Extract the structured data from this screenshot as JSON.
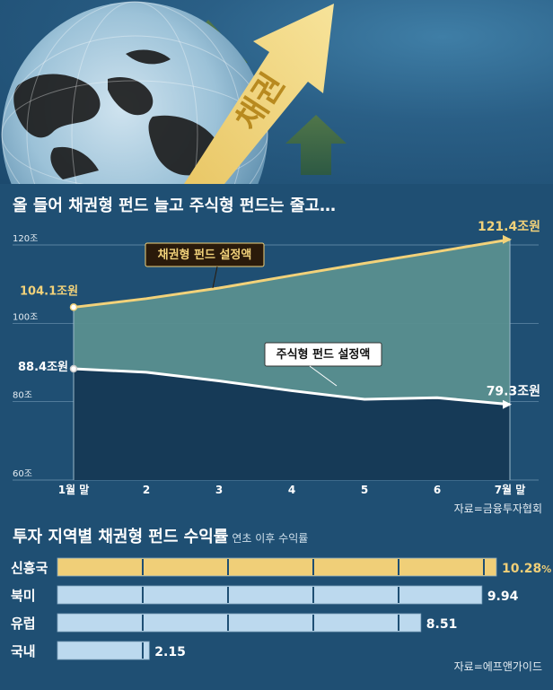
{
  "hero": {
    "arrow_label": "채권"
  },
  "chart1": {
    "title": "올 들어 채권형 펀드 늘고 주식형 펀드는 줄고…",
    "source": "자료=금융투자협회"
  },
  "chart2": {
    "title": "투자 지역별 채권형 펀드 수익률",
    "subtitle": "연초 이후 수익률",
    "source": "자료=에프앤가이드"
  },
  "colors": {
    "bond": "#f2d27a",
    "stock": "#ffffff",
    "bond_area": "#5a8f8f",
    "stock_area": "#163a57",
    "bar_highlight": "#f0cf78",
    "bar_normal": "#bcd9ee"
  },
  "chart_data": [
    {
      "type": "area",
      "categories": [
        "1월 말",
        "2",
        "3",
        "4",
        "5",
        "6",
        "7월 말"
      ],
      "series": [
        {
          "name": "채권형 펀드 설정액",
          "values": [
            104.1,
            106.3,
            109.0,
            112.2,
            115.3,
            118.3,
            121.4
          ]
        },
        {
          "name": "주식형 펀드 설정액",
          "values": [
            88.4,
            87.5,
            85.3,
            82.8,
            80.6,
            81.0,
            79.3
          ]
        }
      ],
      "ytick_labels": [
        "60조",
        "80조",
        "100조",
        "120조"
      ],
      "ylim": [
        60,
        120
      ],
      "data_labels": {
        "bond_start": "104.1조원",
        "bond_end": "121.4조원",
        "stock_start": "88.4조원",
        "stock_end": "79.3조원"
      },
      "grid": true
    },
    {
      "type": "bar",
      "categories": [
        "신흥국",
        "북미",
        "유럽",
        "국내"
      ],
      "values": [
        10.28,
        9.94,
        8.51,
        2.15
      ],
      "value_labels": [
        "10.28",
        "9.94",
        "8.51",
        "2.15"
      ],
      "unit": "%",
      "max_value": 10.28
    }
  ]
}
